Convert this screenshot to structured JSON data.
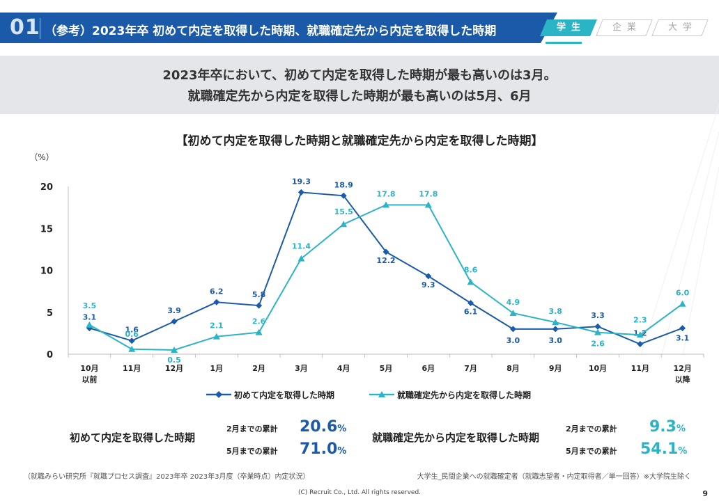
{
  "header": {
    "section_number": "01",
    "title": "（参考）2023年卒 初めて内定を取得した時期、就職確定先から内定を取得した時期",
    "tabs": [
      {
        "label": "学生",
        "active": true
      },
      {
        "label": "企業",
        "active": false
      },
      {
        "label": "大学",
        "active": false
      }
    ]
  },
  "summary": {
    "line1": "2023年卒において、初めて内定を取得した時期が最も高いのは3月。",
    "line2": "就職確定先から内定を取得した時期が最も高いのは5月、6月"
  },
  "chart_data": {
    "type": "line",
    "title": "【初めて内定を取得した時期と就職確定先から内定を取得した時期】",
    "ylabel": "（%）",
    "xlabel": "",
    "ylim": [
      0,
      20
    ],
    "yticks": [
      0,
      5,
      10,
      15,
      20
    ],
    "grid": false,
    "legend_position": "bottom",
    "categories": [
      [
        "10月",
        "以前"
      ],
      [
        "11月"
      ],
      [
        "12月"
      ],
      [
        "1月"
      ],
      [
        "2月"
      ],
      [
        "3月"
      ],
      [
        "4月"
      ],
      [
        "5月"
      ],
      [
        "6月"
      ],
      [
        "7月"
      ],
      [
        "8月"
      ],
      [
        "9月"
      ],
      [
        "10月"
      ],
      [
        "11月"
      ],
      [
        "12月",
        "以降"
      ]
    ],
    "series": [
      {
        "name": "初めて内定を取得した時期",
        "color": "#1a5aa8",
        "marker": "diamond",
        "values": [
          3.1,
          1.6,
          3.9,
          6.2,
          5.8,
          19.3,
          18.9,
          12.2,
          9.3,
          6.1,
          3.0,
          3.0,
          3.3,
          1.2,
          3.1
        ],
        "labels": [
          "3.1",
          "1.6",
          "3.9",
          "6.2",
          "5.8",
          "19.3",
          "18.9",
          "12.2",
          "9.3",
          "6.1",
          "3.0",
          "3.0",
          "3.3",
          "1.2",
          "3.1"
        ]
      },
      {
        "name": "就職確定先から内定を取得した時期",
        "color": "#2bb3c6",
        "marker": "triangle",
        "values": [
          3.5,
          0.6,
          0.5,
          2.1,
          2.6,
          11.4,
          15.5,
          17.8,
          17.8,
          8.6,
          4.9,
          3.8,
          2.6,
          2.3,
          6.0
        ],
        "labels": [
          "3.5",
          "0.6",
          "0.5",
          "2.1",
          "2.6",
          "11.4",
          "15.5",
          "17.8",
          "17.8",
          "8.6",
          "4.9",
          "3.8",
          "2.6",
          "2.3",
          "6.0"
        ]
      }
    ]
  },
  "cumulative": {
    "first": {
      "label": "初めて内定を取得した時期",
      "rows": [
        {
          "label": "2月までの累計",
          "value": "20.6",
          "unit": "%"
        },
        {
          "label": "5月までの累計",
          "value": "71.0",
          "unit": "%"
        }
      ]
    },
    "confirmed": {
      "label": "就職確定先から内定を取得した時期",
      "rows": [
        {
          "label": "2月までの累計",
          "value": "9.3",
          "unit": "%"
        },
        {
          "label": "5月までの累計",
          "value": "54.1",
          "unit": "%"
        }
      ]
    }
  },
  "footer": {
    "source_left": "（就職みらい研究所『就職プロセス調査』2023年卒 2023年3月度（卒業時点）内定状況）",
    "source_right": "大学生_民間企業への就職確定者（就職志望者・内定取得者／単一回答）※大学院生除く",
    "copyright": "(C) Recruit  Co., Ltd. All rights reserved.",
    "page_number": "9"
  }
}
